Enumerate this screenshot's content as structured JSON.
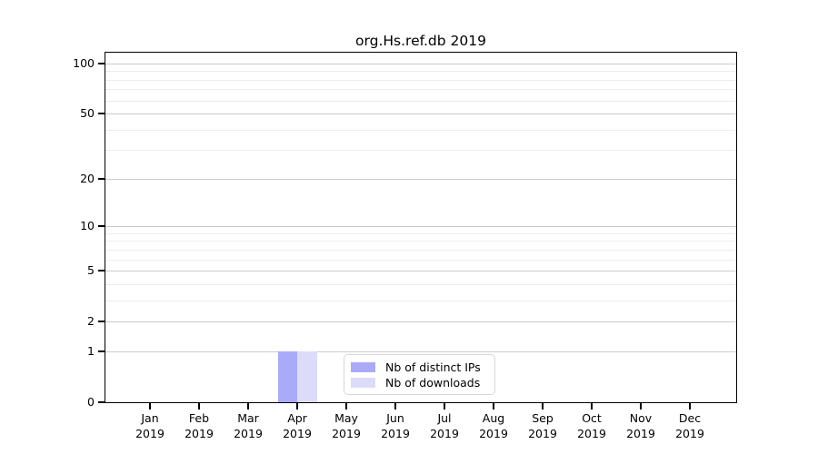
{
  "chart_data": {
    "type": "bar",
    "title": "org.Hs.ref.db 2019",
    "categories": [
      "Jan 2019",
      "Feb 2019",
      "Mar 2019",
      "Apr 2019",
      "May 2019",
      "Jun 2019",
      "Jul 2019",
      "Aug 2019",
      "Sep 2019",
      "Oct 2019",
      "Nov 2019",
      "Dec 2019"
    ],
    "series": [
      {
        "name": "Nb of distinct IPs",
        "color": "#aaabf8",
        "values": [
          0,
          0,
          0,
          1,
          0,
          0,
          0,
          0,
          0,
          0,
          0,
          0
        ]
      },
      {
        "name": "Nb of downloads",
        "color": "#dcdcfa",
        "values": [
          0,
          0,
          0,
          1,
          0,
          0,
          0,
          0,
          0,
          0,
          0,
          0
        ]
      }
    ],
    "yscale": "log1p",
    "ylim": [
      0,
      116
    ],
    "yticks": [
      0,
      1,
      2,
      5,
      10,
      20,
      50,
      100
    ],
    "minor_gridlines": [
      3,
      4,
      6,
      7,
      8,
      9,
      30,
      40,
      60,
      70,
      80,
      90
    ],
    "grid": true,
    "legend_position": "inside-bottom-center",
    "colors": {
      "axis": "#000000",
      "major_grid": "#cccccc",
      "minor_grid": "#ececec",
      "background": "#ffffff"
    }
  }
}
